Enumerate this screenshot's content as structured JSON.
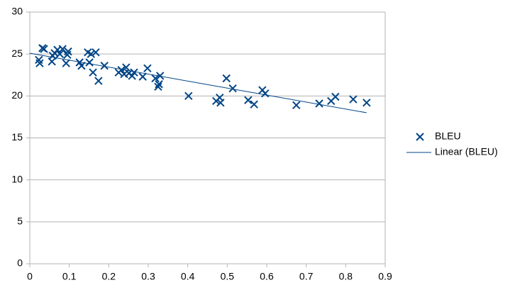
{
  "chart_data": {
    "type": "scatter",
    "series": [
      {
        "name": "BLEU",
        "color": "#004586",
        "x": [
          0.023,
          0.025,
          0.032,
          0.036,
          0.056,
          0.058,
          0.063,
          0.07,
          0.076,
          0.083,
          0.092,
          0.095,
          0.097,
          0.126,
          0.131,
          0.147,
          0.151,
          0.155,
          0.16,
          0.167,
          0.174,
          0.189,
          0.225,
          0.232,
          0.239,
          0.244,
          0.251,
          0.259,
          0.264,
          0.286,
          0.298,
          0.318,
          0.325,
          0.327,
          0.33,
          0.402,
          0.472,
          0.481,
          0.483,
          0.498,
          0.514,
          0.553,
          0.568,
          0.589,
          0.596,
          0.675,
          0.733,
          0.763,
          0.774,
          0.819,
          0.853
        ],
        "values": [
          24.3,
          23.9,
          25.7,
          25.6,
          24.1,
          24.8,
          25.1,
          25.5,
          25.0,
          25.6,
          23.9,
          24.9,
          25.3,
          24.0,
          23.6,
          25.2,
          24.0,
          25.0,
          22.8,
          25.2,
          21.8,
          23.6,
          22.8,
          23.1,
          22.6,
          23.4,
          22.7,
          22.4,
          22.8,
          22.3,
          23.3,
          22.1,
          21.1,
          21.4,
          22.4,
          20.0,
          19.4,
          19.8,
          19.2,
          22.1,
          20.9,
          19.5,
          19.0,
          20.7,
          20.3,
          18.9,
          19.1,
          19.4,
          19.9,
          19.6,
          19.2
        ]
      }
    ],
    "trendline": {
      "name": "Linear (BLEU)",
      "color": "#004586",
      "x": [
        0,
        0.853
      ],
      "values": [
        25.1,
        18.0
      ]
    },
    "xlim": [
      0,
      0.9
    ],
    "xticks": [
      0,
      0.1,
      0.2,
      0.3,
      0.4,
      0.5,
      0.6,
      0.7,
      0.8,
      0.9
    ],
    "ylim": [
      0,
      30
    ],
    "yticks": [
      0,
      5,
      10,
      15,
      20,
      25,
      30
    ],
    "grid": true,
    "legend": "right"
  }
}
